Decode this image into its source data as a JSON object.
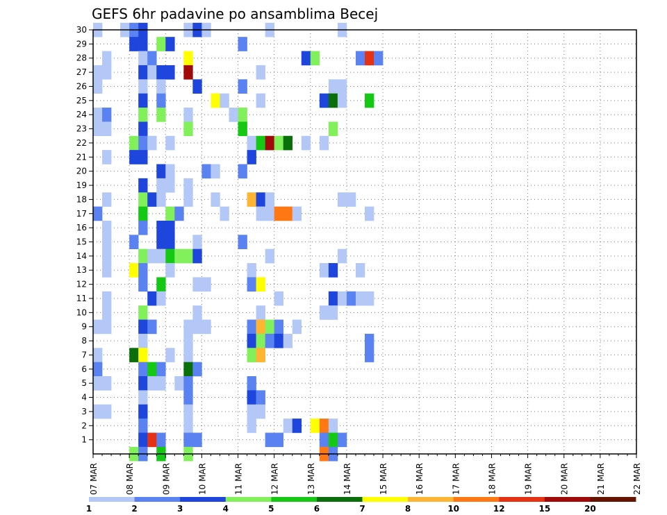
{
  "chart_data": {
    "type": "heatmap",
    "title": "GEFS 6hr padavine po ansamblima Becej",
    "xlabel": "",
    "ylabel": "",
    "x_tick_labels": [
      "07 MAR",
      "08 MAR",
      "09 MAR",
      "10 MAR",
      "11 MAR",
      "12 MAR",
      "13 MAR",
      "14 MAR",
      "15 MAR",
      "16 MAR",
      "17 MAR",
      "18 MAR",
      "19 MAR",
      "20 MAR",
      "21 MAR",
      "22 MAR"
    ],
    "x_range": [
      0,
      60
    ],
    "y_tick_labels": [
      1,
      2,
      3,
      4,
      5,
      6,
      7,
      8,
      9,
      10,
      11,
      12,
      13,
      14,
      15,
      16,
      17,
      18,
      19,
      20,
      21,
      22,
      23,
      24,
      25,
      26,
      27,
      28,
      29,
      30
    ],
    "y_range": [
      0,
      30
    ],
    "grid": true,
    "cell_encoding": "[step_index_from_07MAR_00z, ensemble_member, color_class]",
    "colorbar": {
      "labels": [
        "1",
        "2",
        "3",
        "4",
        "5",
        "6",
        "7",
        "8",
        "10",
        "12",
        "15",
        "20"
      ],
      "colors": [
        "#b4c8f8",
        "#5a82f0",
        "#1e46dc",
        "#82f05a",
        "#14c814",
        "#0a6e0a",
        "#ffff00",
        "#ffb432",
        "#ff7814",
        "#e63214",
        "#a00a0a",
        "#641400"
      ]
    },
    "cells": [
      [
        0,
        30,
        0
      ],
      [
        3,
        30,
        0
      ],
      [
        4,
        30,
        1
      ],
      [
        5,
        30,
        2
      ],
      [
        10,
        30,
        0
      ],
      [
        11,
        30,
        2
      ],
      [
        12,
        30,
        0
      ],
      [
        19,
        30,
        0
      ],
      [
        27,
        30,
        0
      ],
      [
        4,
        29,
        2
      ],
      [
        5,
        29,
        2
      ],
      [
        7,
        29,
        3
      ],
      [
        8,
        29,
        2
      ],
      [
        16,
        29,
        1
      ],
      [
        1,
        28,
        0
      ],
      [
        5,
        28,
        0
      ],
      [
        6,
        28,
        1
      ],
      [
        10,
        28,
        6
      ],
      [
        23,
        28,
        2
      ],
      [
        24,
        28,
        3
      ],
      [
        29,
        28,
        1
      ],
      [
        30,
        28,
        9
      ],
      [
        31,
        28,
        1
      ],
      [
        0,
        27,
        0
      ],
      [
        1,
        27,
        0
      ],
      [
        5,
        27,
        2
      ],
      [
        6,
        27,
        0
      ],
      [
        7,
        27,
        2
      ],
      [
        8,
        27,
        2
      ],
      [
        10,
        27,
        10
      ],
      [
        18,
        27,
        0
      ],
      [
        0,
        26,
        0
      ],
      [
        5,
        26,
        0
      ],
      [
        7,
        26,
        0
      ],
      [
        11,
        26,
        2
      ],
      [
        16,
        26,
        1
      ],
      [
        26,
        26,
        0
      ],
      [
        27,
        26,
        0
      ],
      [
        5,
        25,
        2
      ],
      [
        7,
        25,
        1
      ],
      [
        13,
        25,
        6
      ],
      [
        14,
        25,
        0
      ],
      [
        18,
        25,
        0
      ],
      [
        25,
        25,
        2
      ],
      [
        26,
        25,
        5
      ],
      [
        27,
        25,
        0
      ],
      [
        30,
        25,
        4
      ],
      [
        0,
        24,
        0
      ],
      [
        1,
        24,
        1
      ],
      [
        5,
        24,
        3
      ],
      [
        7,
        24,
        3
      ],
      [
        10,
        24,
        0
      ],
      [
        15,
        24,
        0
      ],
      [
        16,
        24,
        3
      ],
      [
        0,
        23,
        0
      ],
      [
        1,
        23,
        0
      ],
      [
        5,
        23,
        2
      ],
      [
        10,
        23,
        3
      ],
      [
        16,
        23,
        4
      ],
      [
        26,
        23,
        3
      ],
      [
        4,
        22,
        3
      ],
      [
        5,
        22,
        1
      ],
      [
        6,
        22,
        0
      ],
      [
        8,
        22,
        0
      ],
      [
        17,
        22,
        0
      ],
      [
        18,
        22,
        4
      ],
      [
        19,
        22,
        10
      ],
      [
        20,
        22,
        3
      ],
      [
        21,
        22,
        5
      ],
      [
        23,
        22,
        0
      ],
      [
        25,
        22,
        0
      ],
      [
        1,
        21,
        0
      ],
      [
        4,
        21,
        2
      ],
      [
        5,
        21,
        2
      ],
      [
        17,
        21,
        2
      ],
      [
        7,
        20,
        2
      ],
      [
        8,
        20,
        0
      ],
      [
        12,
        20,
        1
      ],
      [
        13,
        20,
        0
      ],
      [
        16,
        20,
        1
      ],
      [
        5,
        19,
        2
      ],
      [
        7,
        19,
        0
      ],
      [
        8,
        19,
        0
      ],
      [
        10,
        19,
        0
      ],
      [
        1,
        18,
        0
      ],
      [
        5,
        18,
        3
      ],
      [
        6,
        18,
        2
      ],
      [
        7,
        18,
        0
      ],
      [
        10,
        18,
        0
      ],
      [
        13,
        18,
        0
      ],
      [
        17,
        18,
        7
      ],
      [
        18,
        18,
        2
      ],
      [
        19,
        18,
        0
      ],
      [
        27,
        18,
        0
      ],
      [
        28,
        18,
        0
      ],
      [
        0,
        17,
        1
      ],
      [
        5,
        17,
        4
      ],
      [
        8,
        17,
        3
      ],
      [
        9,
        17,
        1
      ],
      [
        14,
        17,
        0
      ],
      [
        18,
        17,
        0
      ],
      [
        19,
        17,
        0
      ],
      [
        20,
        17,
        8
      ],
      [
        21,
        17,
        8
      ],
      [
        22,
        17,
        0
      ],
      [
        30,
        17,
        0
      ],
      [
        1,
        16,
        0
      ],
      [
        5,
        16,
        1
      ],
      [
        7,
        16,
        2
      ],
      [
        8,
        16,
        2
      ],
      [
        1,
        15,
        0
      ],
      [
        4,
        15,
        1
      ],
      [
        7,
        15,
        2
      ],
      [
        8,
        15,
        2
      ],
      [
        11,
        15,
        0
      ],
      [
        16,
        15,
        1
      ],
      [
        1,
        14,
        0
      ],
      [
        5,
        14,
        3
      ],
      [
        6,
        14,
        0
      ],
      [
        7,
        14,
        0
      ],
      [
        8,
        14,
        4
      ],
      [
        9,
        14,
        3
      ],
      [
        10,
        14,
        3
      ],
      [
        11,
        14,
        2
      ],
      [
        19,
        14,
        0
      ],
      [
        27,
        14,
        0
      ],
      [
        1,
        13,
        0
      ],
      [
        4,
        13,
        6
      ],
      [
        5,
        13,
        1
      ],
      [
        8,
        13,
        0
      ],
      [
        17,
        13,
        0
      ],
      [
        25,
        13,
        0
      ],
      [
        26,
        13,
        2
      ],
      [
        29,
        13,
        0
      ],
      [
        5,
        12,
        1
      ],
      [
        7,
        12,
        4
      ],
      [
        11,
        12,
        0
      ],
      [
        12,
        12,
        0
      ],
      [
        17,
        12,
        1
      ],
      [
        18,
        12,
        6
      ],
      [
        1,
        11,
        0
      ],
      [
        6,
        11,
        2
      ],
      [
        7,
        11,
        0
      ],
      [
        20,
        11,
        0
      ],
      [
        26,
        11,
        2
      ],
      [
        27,
        11,
        0
      ],
      [
        28,
        11,
        1
      ],
      [
        29,
        11,
        0
      ],
      [
        30,
        11,
        0
      ],
      [
        1,
        10,
        0
      ],
      [
        5,
        10,
        3
      ],
      [
        11,
        10,
        0
      ],
      [
        18,
        10,
        0
      ],
      [
        25,
        10,
        0
      ],
      [
        26,
        10,
        0
      ],
      [
        0,
        9,
        0
      ],
      [
        1,
        9,
        0
      ],
      [
        5,
        9,
        2
      ],
      [
        6,
        9,
        1
      ],
      [
        10,
        9,
        0
      ],
      [
        11,
        9,
        0
      ],
      [
        12,
        9,
        0
      ],
      [
        17,
        9,
        1
      ],
      [
        18,
        9,
        7
      ],
      [
        19,
        9,
        3
      ],
      [
        20,
        9,
        1
      ],
      [
        22,
        9,
        0
      ],
      [
        5,
        8,
        0
      ],
      [
        10,
        8,
        0
      ],
      [
        17,
        8,
        2
      ],
      [
        18,
        8,
        3
      ],
      [
        19,
        8,
        1
      ],
      [
        20,
        8,
        2
      ],
      [
        21,
        8,
        0
      ],
      [
        30,
        8,
        1
      ],
      [
        0,
        7,
        0
      ],
      [
        4,
        7,
        5
      ],
      [
        5,
        7,
        6
      ],
      [
        8,
        7,
        0
      ],
      [
        10,
        7,
        0
      ],
      [
        17,
        7,
        3
      ],
      [
        18,
        7,
        7
      ],
      [
        30,
        7,
        1
      ],
      [
        0,
        6,
        1
      ],
      [
        5,
        6,
        1
      ],
      [
        6,
        6,
        4
      ],
      [
        7,
        6,
        1
      ],
      [
        10,
        6,
        5
      ],
      [
        11,
        6,
        1
      ],
      [
        0,
        5,
        0
      ],
      [
        1,
        5,
        0
      ],
      [
        5,
        5,
        2
      ],
      [
        6,
        5,
        0
      ],
      [
        7,
        5,
        0
      ],
      [
        9,
        5,
        0
      ],
      [
        10,
        5,
        1
      ],
      [
        17,
        5,
        1
      ],
      [
        5,
        4,
        0
      ],
      [
        10,
        4,
        1
      ],
      [
        17,
        4,
        2
      ],
      [
        18,
        4,
        1
      ],
      [
        0,
        3,
        0
      ],
      [
        1,
        3,
        0
      ],
      [
        5,
        3,
        2
      ],
      [
        10,
        3,
        0
      ],
      [
        17,
        3,
        0
      ],
      [
        18,
        3,
        0
      ],
      [
        5,
        2,
        1
      ],
      [
        10,
        2,
        0
      ],
      [
        17,
        2,
        0
      ],
      [
        21,
        2,
        0
      ],
      [
        22,
        2,
        2
      ],
      [
        24,
        2,
        6
      ],
      [
        25,
        2,
        8
      ],
      [
        26,
        2,
        0
      ],
      [
        5,
        1,
        2
      ],
      [
        6,
        1,
        9
      ],
      [
        7,
        1,
        1
      ],
      [
        10,
        1,
        1
      ],
      [
        11,
        1,
        1
      ],
      [
        19,
        1,
        1
      ],
      [
        20,
        1,
        1
      ],
      [
        25,
        1,
        1
      ],
      [
        26,
        1,
        4
      ],
      [
        27,
        1,
        1
      ],
      [
        4,
        0,
        3
      ],
      [
        5,
        0,
        1
      ],
      [
        7,
        0,
        4
      ],
      [
        10,
        0,
        3
      ],
      [
        25,
        0,
        8
      ],
      [
        26,
        0,
        1
      ]
    ]
  }
}
